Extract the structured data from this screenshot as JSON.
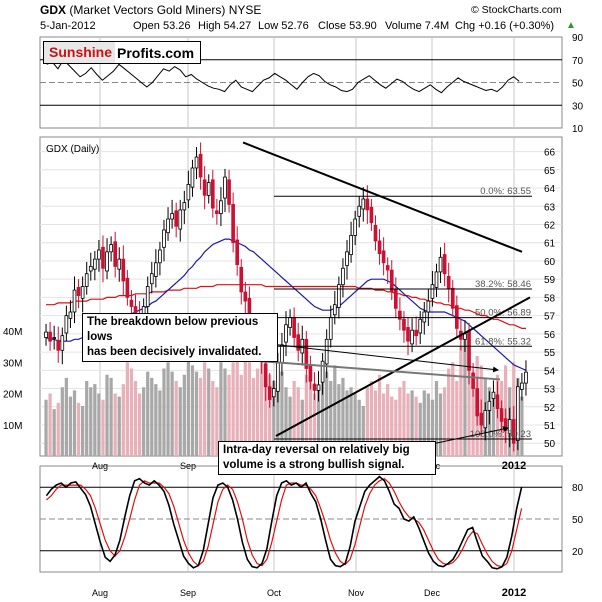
{
  "header": {
    "ticker": "GDX",
    "name": "(Market Vectors Gold Miners)",
    "exchange": "NYSE",
    "date": "5-Jan-2012",
    "open": "Open 53.26",
    "high": "High 54.27",
    "low": "Low 52.76",
    "close": "Close 53.90",
    "volume": "Volume 7.4M",
    "change": "Chg +0.16 (+0.30%)",
    "arrow": "▲",
    "copyright": "© StockCharts.com"
  },
  "brand": {
    "part1": "Sunshine",
    "part2": "Profits.com"
  },
  "annotations": {
    "top_line1": "The breakdown below previous lows",
    "top_line2": "has been decisively invalidated.",
    "bottom_line1": "Intra-day reversal on relatively big",
    "bottom_line2": "volume is a strong bullish signal."
  },
  "colors": {
    "up": "#000000",
    "down": "#cc1133",
    "ma50": "#1a1aaa",
    "ma200": "#dd1111",
    "stoch_k": "#000000",
    "stoch_d": "#dd1111",
    "vol_up": "#a8a8a8",
    "vol_down": "#e8b0b8",
    "grid": "#c8c8c8"
  },
  "chart_data": [
    {
      "type": "line",
      "panel": "rsi",
      "y_ticks": [
        10,
        30,
        50,
        70,
        90
      ],
      "ylim": [
        10,
        90
      ],
      "reference_lines": [
        30,
        50,
        70
      ],
      "values": [
        66,
        68,
        62,
        70,
        65,
        60,
        55,
        58,
        63,
        57,
        52,
        56,
        60,
        66,
        62,
        58,
        54,
        50,
        46,
        50,
        56,
        62,
        60,
        64,
        61,
        55,
        57,
        53,
        50,
        47,
        45,
        44,
        42,
        48,
        52,
        46,
        44,
        42,
        47,
        52,
        54,
        58,
        55,
        52,
        48,
        44,
        50,
        55,
        58,
        56,
        51,
        48,
        46,
        43,
        42,
        44,
        50,
        53,
        56,
        52,
        48,
        45,
        49,
        53,
        51,
        47,
        44,
        42,
        45,
        48,
        44,
        41,
        46,
        50,
        54,
        51,
        49,
        47,
        45,
        43,
        44,
        42,
        46,
        52,
        55,
        51
      ]
    },
    {
      "type": "candlestick",
      "panel": "price",
      "label": "GDX (Daily)",
      "y_ticks": [
        50,
        51,
        52,
        53,
        54,
        55,
        56,
        57,
        58,
        59,
        60,
        61,
        62,
        63,
        64,
        65,
        66
      ],
      "ylim": [
        49.3,
        66.8
      ],
      "x_tick_labels": [
        "Aug",
        "Sep",
        "Oct",
        "Nov",
        "Dec",
        "2012"
      ],
      "close": [
        56.1,
        55.6,
        55.8,
        55.1,
        55.9,
        57.0,
        57.2,
        58.4,
        58.1,
        58.6,
        59.3,
        59.7,
        60.1,
        60.6,
        59.6,
        60.5,
        60.9,
        59.7,
        60.1,
        58.9,
        58.0,
        57.5,
        56.9,
        56.5,
        57.5,
        58.6,
        59.3,
        59.9,
        60.6,
        61.7,
        62.3,
        62.6,
        61.9,
        62.8,
        63.2,
        64.2,
        65.1,
        65.7,
        64.6,
        63.6,
        64.3,
        62.9,
        62.6,
        63.3,
        64.6,
        63.1,
        61.0,
        59.8,
        58.3,
        57.8,
        56.4,
        55.6,
        55.1,
        54.5,
        53.1,
        52.4,
        53.0,
        54.4,
        55.4,
        56.5,
        56.9,
        55.8,
        55.1,
        55.7,
        54.1,
        53.4,
        52.9,
        53.2,
        54.5,
        55.7,
        56.9,
        57.6,
        58.7,
        59.6,
        60.5,
        61.4,
        62.3,
        63.0,
        63.4,
        62.8,
        62.1,
        61.1,
        60.4,
        59.9,
        59.5,
        58.3,
        57.4,
        56.8,
        56.2,
        55.6,
        56.2,
        55.9,
        56.8,
        57.2,
        57.8,
        58.7,
        59.4,
        60.2,
        59.3,
        58.5,
        57.4,
        56.3,
        55.7,
        56.0,
        54.0,
        53.0,
        51.5,
        51.0,
        51.8,
        52.3,
        52.8,
        51.9,
        51.2,
        50.7,
        51.3,
        50.0,
        53.1,
        53.3,
        53.9
      ],
      "ma50": [
        55.8,
        55.7,
        55.7,
        55.6,
        55.6,
        55.6,
        55.6,
        55.7,
        55.7,
        55.8,
        55.9,
        56.0,
        56.1,
        56.2,
        56.3,
        56.4,
        56.6,
        56.7,
        56.8,
        56.9,
        57.0,
        57.1,
        57.2,
        57.3,
        57.4,
        57.5,
        57.7,
        57.8,
        58.0,
        58.2,
        58.4,
        58.6,
        58.8,
        59.0,
        59.2,
        59.5,
        59.7,
        60.0,
        60.2,
        60.5,
        60.7,
        60.9,
        61.0,
        61.1,
        61.2,
        61.2,
        61.1,
        61.0,
        60.9,
        60.8,
        60.6,
        60.5,
        60.3,
        60.1,
        59.9,
        59.7,
        59.5,
        59.3,
        59.1,
        58.9,
        58.7,
        58.5,
        58.3,
        58.1,
        57.9,
        57.7,
        57.5,
        57.4,
        57.3,
        57.3,
        57.3,
        57.4,
        57.5,
        57.7,
        57.9,
        58.1,
        58.3,
        58.5,
        58.7,
        58.9,
        59.0,
        59.0,
        59.0,
        59.0,
        58.9,
        58.8,
        58.6,
        58.4,
        58.2,
        58.0,
        57.8,
        57.6,
        57.4,
        57.3,
        57.2,
        57.2,
        57.2,
        57.2,
        57.2,
        57.1,
        57.0,
        56.9,
        56.8,
        56.7,
        56.5,
        56.3,
        56.1,
        55.9,
        55.7,
        55.5,
        55.3,
        55.1,
        54.9,
        54.7,
        54.5,
        54.3,
        54.2,
        54.1,
        54.0
      ],
      "ma200": [
        57.6,
        57.6,
        57.6,
        57.7,
        57.7,
        57.7,
        57.7,
        57.8,
        57.8,
        57.8,
        57.8,
        57.9,
        57.9,
        57.9,
        57.9,
        58.0,
        58.0,
        58.0,
        58.1,
        58.1,
        58.1,
        58.1,
        58.2,
        58.2,
        58.2,
        58.2,
        58.3,
        58.3,
        58.3,
        58.3,
        58.4,
        58.4,
        58.4,
        58.4,
        58.5,
        58.5,
        58.5,
        58.5,
        58.6,
        58.6,
        58.6,
        58.6,
        58.7,
        58.7,
        58.7,
        58.7,
        58.7,
        58.7,
        58.7,
        58.7,
        58.7,
        58.7,
        58.7,
        58.7,
        58.6,
        58.6,
        58.6,
        58.6,
        58.6,
        58.6,
        58.6,
        58.6,
        58.6,
        58.6,
        58.6,
        58.6,
        58.6,
        58.6,
        58.6,
        58.6,
        58.6,
        58.6,
        58.6,
        58.6,
        58.6,
        58.6,
        58.6,
        58.5,
        58.5,
        58.5,
        58.5,
        58.4,
        58.4,
        58.4,
        58.3,
        58.3,
        58.2,
        58.2,
        58.1,
        58.1,
        58.0,
        58.0,
        57.9,
        57.9,
        57.8,
        57.8,
        57.7,
        57.7,
        57.6,
        57.6,
        57.5,
        57.4,
        57.4,
        57.3,
        57.3,
        57.2,
        57.1,
        57.0,
        57.0,
        56.9,
        56.8,
        56.8,
        56.7,
        56.6,
        56.5,
        56.5,
        56.4,
        56.3,
        56.3
      ],
      "fibonacci": [
        {
          "label": "0.0%: 63.55",
          "value": 63.55
        },
        {
          "label": "38.2%: 58.46",
          "value": 58.46
        },
        {
          "label": "50.0%: 56.89",
          "value": 56.89
        },
        {
          "label": "61.8%: 55.32",
          "value": 55.32
        },
        {
          "label": "100.0%: 50.23",
          "value": 50.23
        }
      ],
      "trendlines": [
        {
          "name": "triangle-top",
          "from": [
            "Sep-high",
            66.5
          ],
          "to": [
            "Dec-end",
            60.5
          ]
        },
        {
          "name": "triangle-bottom",
          "from": [
            "Oct-low",
            50.4
          ],
          "to": [
            "Dec-end",
            58.0
          ]
        },
        {
          "name": "breakdown-line",
          "from": [
            "Sep-late",
            54.3
          ],
          "to": [
            "Dec-end",
            53.5
          ]
        }
      ]
    },
    {
      "type": "bar",
      "panel": "volume",
      "y_ticks": [
        "10M",
        "20M",
        "30M",
        "40M"
      ],
      "ylim": [
        0,
        48
      ],
      "values": [
        18,
        20,
        15,
        17,
        22,
        25,
        19,
        21,
        17,
        16,
        24,
        22,
        23,
        20,
        18,
        26,
        25,
        20,
        19,
        23,
        30,
        28,
        24,
        20,
        22,
        27,
        25,
        23,
        21,
        28,
        30,
        27,
        24,
        22,
        26,
        32,
        29,
        27,
        25,
        30,
        28,
        24,
        22,
        30,
        28,
        26,
        30,
        38,
        26,
        32,
        30,
        25,
        28,
        33,
        36,
        26,
        24,
        30,
        27,
        22,
        19,
        24,
        22,
        18,
        26,
        25,
        20,
        22,
        25,
        27,
        24,
        29,
        23,
        25,
        21,
        22,
        20,
        18,
        16,
        22,
        24,
        21,
        26,
        20,
        23,
        19,
        18,
        22,
        24,
        20,
        21,
        19,
        17,
        21,
        20,
        18,
        24,
        20,
        22,
        28,
        30,
        24,
        35,
        38,
        30,
        27,
        32,
        29,
        25,
        22,
        20,
        26,
        24,
        29,
        22,
        30,
        25,
        19
      ]
    },
    {
      "type": "line",
      "panel": "stochastic",
      "y_ticks": [
        20,
        50,
        80
      ],
      "ylim": [
        0,
        100
      ],
      "reference_lines": [
        20,
        50,
        80
      ],
      "k": [
        72,
        78,
        82,
        84,
        80,
        84,
        85,
        79,
        73,
        62,
        45,
        28,
        14,
        10,
        16,
        30,
        52,
        72,
        86,
        88,
        84,
        82,
        86,
        82,
        76,
        63,
        45,
        30,
        15,
        8,
        4,
        6,
        20,
        45,
        70,
        82,
        84,
        80,
        68,
        50,
        28,
        12,
        5,
        4,
        8,
        22,
        48,
        72,
        84,
        86,
        82,
        84,
        80,
        84,
        74,
        66,
        50,
        30,
        12,
        6,
        5,
        8,
        24,
        48,
        62,
        76,
        82,
        86,
        90,
        86,
        76,
        64,
        60,
        50,
        48,
        52,
        42,
        30,
        18,
        10,
        6,
        5,
        8,
        12,
        20,
        30,
        40,
        42,
        28,
        15,
        10,
        4,
        3,
        5,
        14,
        34,
        60,
        80
      ],
      "d": [
        68,
        72,
        78,
        82,
        82,
        82,
        82,
        82,
        78,
        72,
        60,
        45,
        30,
        20,
        15,
        20,
        33,
        50,
        68,
        82,
        86,
        84,
        84,
        84,
        80,
        74,
        62,
        46,
        30,
        18,
        10,
        6,
        10,
        24,
        45,
        66,
        78,
        82,
        78,
        66,
        50,
        30,
        16,
        8,
        6,
        12,
        28,
        48,
        68,
        82,
        84,
        84,
        82,
        82,
        78,
        72,
        60,
        46,
        30,
        18,
        10,
        7,
        12,
        26,
        44,
        62,
        74,
        82,
        86,
        88,
        84,
        76,
        66,
        58,
        52,
        50,
        47,
        40,
        30,
        20,
        12,
        8,
        7,
        9,
        14,
        22,
        32,
        38,
        36,
        26,
        17,
        10,
        6,
        5,
        8,
        20,
        40,
        60
      ]
    }
  ]
}
